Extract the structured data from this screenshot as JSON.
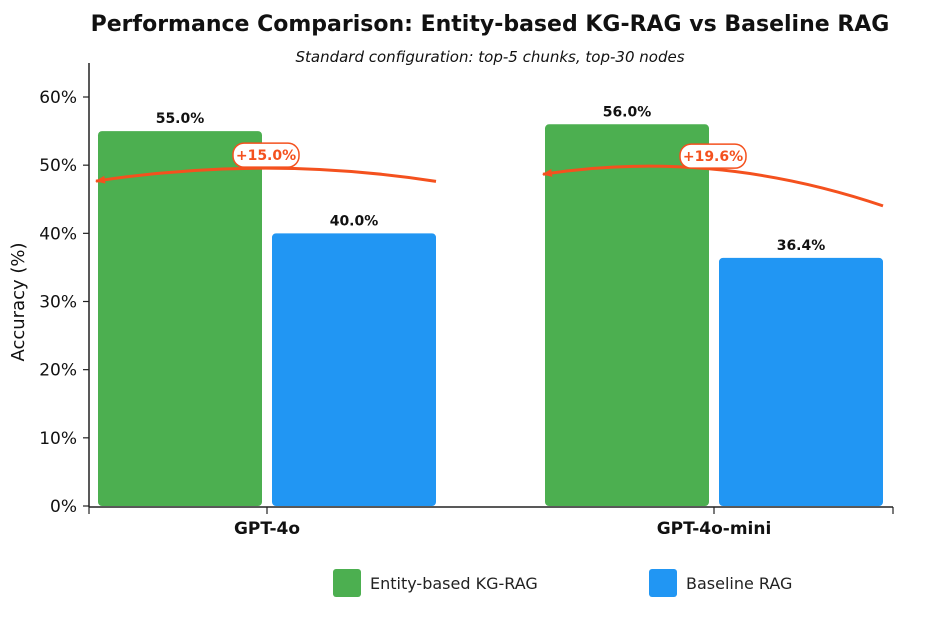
{
  "chart_data": {
    "type": "bar",
    "title": "Performance Comparison: Entity-based KG-RAG vs Baseline RAG",
    "subtitle": "Standard configuration: top-5 chunks, top-30 nodes",
    "ylabel": "Accuracy (%)",
    "xlabel": "",
    "categories": [
      "GPT-4o",
      "GPT-4o-mini"
    ],
    "ylim": [
      0,
      65
    ],
    "yticks": [
      0,
      10,
      20,
      30,
      40,
      50,
      60
    ],
    "ytick_labels": [
      "0%",
      "10%",
      "20%",
      "30%",
      "40%",
      "50%",
      "60%"
    ],
    "grid": false,
    "legend_position": "bottom",
    "series": [
      {
        "name": "Entity-based KG-RAG",
        "color": "#4caf50",
        "values": [
          55.0,
          56.0
        ],
        "labels": [
          "55.0%",
          "56.0%"
        ]
      },
      {
        "name": "Baseline RAG",
        "color": "#2196f3",
        "values": [
          40.0,
          36.4
        ],
        "labels": [
          "40.0%",
          "36.4%"
        ]
      }
    ],
    "annotations": [
      {
        "category": "GPT-4o",
        "text": "+15.0%",
        "color": "#f4511e"
      },
      {
        "category": "GPT-4o-mini",
        "text": "+19.6%",
        "color": "#f4511e"
      }
    ]
  }
}
